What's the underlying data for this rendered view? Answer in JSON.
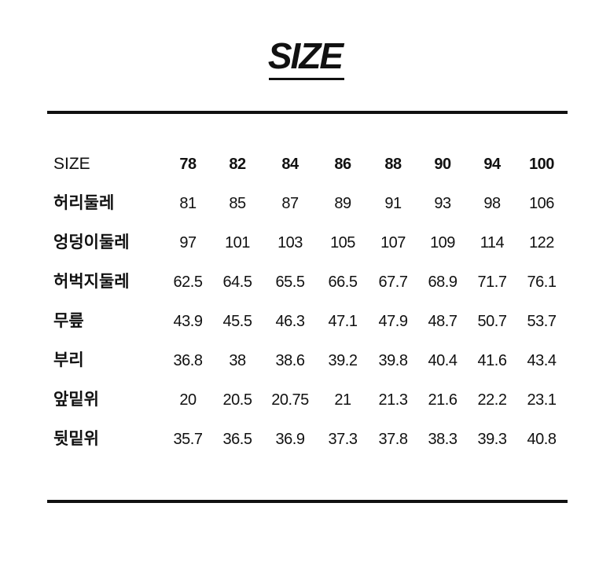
{
  "title": "SIZE",
  "table": {
    "header": {
      "label": "SIZE",
      "values": [
        "78",
        "82",
        "84",
        "86",
        "88",
        "90",
        "94",
        "100"
      ]
    },
    "rows": [
      {
        "label": "허리둘레",
        "values": [
          "81",
          "85",
          "87",
          "89",
          "91",
          "93",
          "98",
          "106"
        ]
      },
      {
        "label": "엉덩이둘레",
        "values": [
          "97",
          "101",
          "103",
          "105",
          "107",
          "109",
          "114",
          "122"
        ]
      },
      {
        "label": "허벅지둘레",
        "values": [
          "62.5",
          "64.5",
          "65.5",
          "66.5",
          "67.7",
          "68.9",
          "71.7",
          "76.1"
        ]
      },
      {
        "label": "무릎",
        "values": [
          "43.9",
          "45.5",
          "46.3",
          "47.1",
          "47.9",
          "48.7",
          "50.7",
          "53.7"
        ]
      },
      {
        "label": "부리",
        "values": [
          "36.8",
          "38",
          "38.6",
          "39.2",
          "39.8",
          "40.4",
          "41.6",
          "43.4"
        ]
      },
      {
        "label": "앞밑위",
        "values": [
          "20",
          "20.5",
          "20.75",
          "21",
          "21.3",
          "21.6",
          "22.2",
          "23.1"
        ]
      },
      {
        "label": "뒷밑위",
        "values": [
          "35.7",
          "36.5",
          "36.9",
          "37.3",
          "37.8",
          "38.3",
          "39.3",
          "40.8"
        ]
      }
    ]
  }
}
